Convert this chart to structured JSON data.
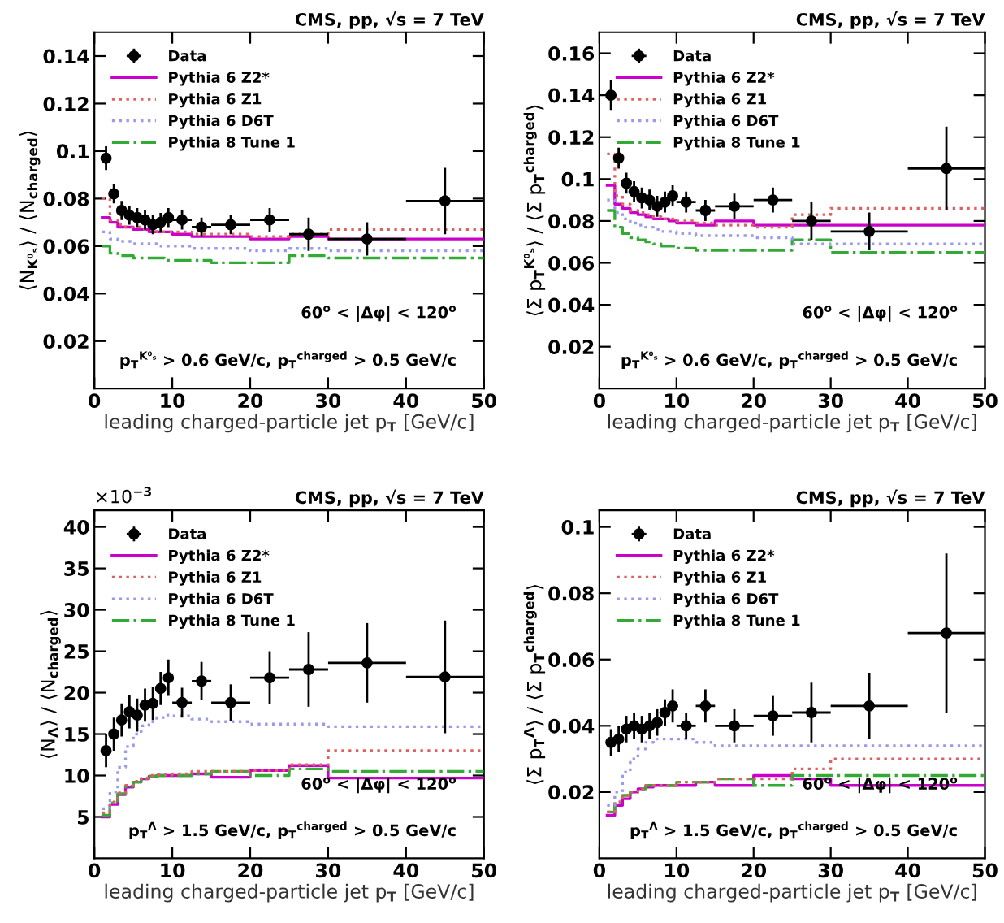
{
  "chart_data": [
    {
      "type": "step",
      "title": "CMS, pp, √s = 7 TeV",
      "xlabel": "leading charged-particle jet p$_{T}$ [GeV/c]",
      "ylabel": "⟨N$_{K⁰ₛ}$⟩ / ⟨N$_{charged}$⟩",
      "annotations": [
        "60$^{o}$ < |Δφ| < 120$^{o}$",
        "p$_{T}$$^{K⁰ₛ}$ > 0.6 GeV/c, p$_{T}$$^{charged}$ > 0.5 GeV/c"
      ],
      "xlim": [
        0,
        50
      ],
      "ylim": [
        0,
        0.15
      ],
      "xticks": [
        0,
        10,
        20,
        30,
        40,
        50
      ],
      "yticks": [
        0.02,
        0.04,
        0.06,
        0.08,
        0.1,
        0.12,
        0.14
      ],
      "legend": "top left",
      "series": [
        {
          "name": "Data",
          "type": "scatter",
          "marker": "circle",
          "color": "#000000",
          "x": [
            1.5,
            2.5,
            3.5,
            4.5,
            5.5,
            6.5,
            7.5,
            8.5,
            9.5,
            11.25,
            13.75,
            17.5,
            22.5,
            27.5,
            35,
            45
          ],
          "values": [
            0.097,
            0.082,
            0.075,
            0.073,
            0.072,
            0.071,
            0.069,
            0.07,
            0.072,
            0.071,
            0.068,
            0.069,
            0.071,
            0.065,
            0.063,
            0.079
          ],
          "errors": [
            0.005,
            0.004,
            0.004,
            0.004,
            0.004,
            0.004,
            0.004,
            0.004,
            0.004,
            0.004,
            0.004,
            0.004,
            0.005,
            0.007,
            0.007,
            0.014
          ],
          "xerrors": [
            0.5,
            0.5,
            0.5,
            0.5,
            0.5,
            0.5,
            0.5,
            0.5,
            0.5,
            1.25,
            1.25,
            2.5,
            2.5,
            2.5,
            5,
            5
          ]
        },
        {
          "name": "Pythia 6 Z2*",
          "type": "step",
          "line_style": "solid",
          "color": "#cc00cc",
          "x": [
            1,
            2,
            3,
            4,
            5,
            6,
            7,
            8,
            9,
            10,
            12.5,
            15,
            20,
            25,
            30,
            40,
            50
          ],
          "values": [
            0.072,
            0.07,
            0.068,
            0.068,
            0.067,
            0.067,
            0.066,
            0.066,
            0.066,
            0.065,
            0.064,
            0.064,
            0.063,
            0.064,
            0.063,
            0.063,
            0.063
          ]
        },
        {
          "name": "Pythia 6 Z1",
          "type": "step",
          "line_style": "dotted",
          "color": "#e06060",
          "x": [
            1,
            2,
            3,
            4,
            5,
            6,
            7,
            8,
            9,
            10,
            12.5,
            15,
            20,
            25,
            30,
            40,
            50
          ],
          "values": [
            0.08,
            0.071,
            0.069,
            0.068,
            0.068,
            0.067,
            0.067,
            0.066,
            0.066,
            0.066,
            0.065,
            0.065,
            0.064,
            0.065,
            0.067,
            0.067,
            0.067
          ]
        },
        {
          "name": "Pythia 6 D6T",
          "type": "step",
          "line_style": "dotted",
          "color": "#9999ee",
          "x": [
            1,
            2,
            3,
            4,
            5,
            6,
            7,
            8,
            9,
            10,
            12.5,
            15,
            20,
            25,
            30,
            40,
            50
          ],
          "values": [
            0.066,
            0.063,
            0.062,
            0.062,
            0.061,
            0.061,
            0.061,
            0.06,
            0.06,
            0.06,
            0.059,
            0.059,
            0.058,
            0.059,
            0.058,
            0.058,
            0.058
          ]
        },
        {
          "name": "Pythia 8 Tune 1",
          "type": "step",
          "line_style": "dashdot",
          "color": "#33aa33",
          "x": [
            1,
            2,
            3,
            4,
            5,
            6,
            7,
            8,
            9,
            10,
            12.5,
            15,
            20,
            25,
            30,
            40,
            50
          ],
          "values": [
            0.06,
            0.057,
            0.056,
            0.056,
            0.055,
            0.055,
            0.055,
            0.055,
            0.054,
            0.054,
            0.054,
            0.053,
            0.053,
            0.056,
            0.055,
            0.055,
            0.055
          ]
        }
      ]
    },
    {
      "type": "step",
      "title": "CMS, pp, √s = 7 TeV",
      "xlabel": "leading charged-particle jet p$_{T}$ [GeV/c]",
      "ylabel": "⟨Σ p$_{T}$$^{K⁰ₛ}$⟩ / ⟨Σ p$_{T}$$^{charged}$⟩",
      "annotations": [
        "60$^{o}$ < |Δφ| < 120$^{o}$",
        "p$_{T}$$^{K⁰ₛ}$ > 0.6 GeV/c, p$_{T}$$^{charged}$ > 0.5 GeV/c"
      ],
      "xlim": [
        0,
        50
      ],
      "ylim": [
        0,
        0.17
      ],
      "xticks": [
        0,
        10,
        20,
        30,
        40,
        50
      ],
      "yticks": [
        0.02,
        0.04,
        0.06,
        0.08,
        0.1,
        0.12,
        0.14,
        0.16
      ],
      "legend": "top left",
      "series": [
        {
          "name": "Data",
          "type": "scatter",
          "marker": "circle",
          "color": "#000000",
          "x": [
            1.5,
            2.5,
            3.5,
            4.5,
            5.5,
            6.5,
            7.5,
            8.5,
            9.5,
            11.25,
            13.75,
            17.5,
            22.5,
            27.5,
            35,
            45
          ],
          "values": [
            0.14,
            0.11,
            0.098,
            0.094,
            0.091,
            0.09,
            0.087,
            0.089,
            0.092,
            0.089,
            0.085,
            0.087,
            0.09,
            0.08,
            0.075,
            0.105
          ],
          "errors": [
            0.007,
            0.005,
            0.005,
            0.005,
            0.005,
            0.005,
            0.005,
            0.005,
            0.005,
            0.005,
            0.005,
            0.006,
            0.006,
            0.009,
            0.009,
            0.02
          ],
          "xerrors": [
            0.5,
            0.5,
            0.5,
            0.5,
            0.5,
            0.5,
            0.5,
            0.5,
            0.5,
            1.25,
            1.25,
            2.5,
            2.5,
            2.5,
            5,
            5
          ]
        },
        {
          "name": "Pythia 6 Z2*",
          "type": "step",
          "line_style": "solid",
          "color": "#cc00cc",
          "x": [
            1,
            2,
            3,
            4,
            5,
            6,
            7,
            8,
            9,
            10,
            12.5,
            15,
            20,
            25,
            30,
            40,
            50
          ],
          "values": [
            0.097,
            0.088,
            0.086,
            0.084,
            0.083,
            0.082,
            0.081,
            0.081,
            0.08,
            0.079,
            0.078,
            0.08,
            0.078,
            0.078,
            0.078,
            0.078,
            0.078
          ]
        },
        {
          "name": "Pythia 6 Z1",
          "type": "step",
          "line_style": "dotted",
          "color": "#e06060",
          "x": [
            1,
            2,
            3,
            4,
            5,
            6,
            7,
            8,
            9,
            10,
            12.5,
            15,
            20,
            25,
            30,
            40,
            50
          ],
          "values": [
            0.112,
            0.092,
            0.088,
            0.085,
            0.084,
            0.083,
            0.082,
            0.081,
            0.081,
            0.08,
            0.079,
            0.078,
            0.077,
            0.083,
            0.086,
            0.086,
            0.086
          ]
        },
        {
          "name": "Pythia 6 D6T",
          "type": "step",
          "line_style": "dotted",
          "color": "#9999ee",
          "x": [
            1,
            2,
            3,
            4,
            5,
            6,
            7,
            8,
            9,
            10,
            12.5,
            15,
            20,
            25,
            30,
            40,
            50
          ],
          "values": [
            0.09,
            0.084,
            0.081,
            0.079,
            0.078,
            0.077,
            0.076,
            0.075,
            0.075,
            0.074,
            0.073,
            0.073,
            0.072,
            0.069,
            0.069,
            0.069,
            0.069
          ]
        },
        {
          "name": "Pythia 8 Tune 1",
          "type": "step",
          "line_style": "dashdot",
          "color": "#33aa33",
          "x": [
            1,
            2,
            3,
            4,
            5,
            6,
            7,
            8,
            9,
            10,
            12.5,
            15,
            20,
            25,
            30,
            40,
            50
          ],
          "values": [
            0.085,
            0.077,
            0.074,
            0.072,
            0.071,
            0.07,
            0.069,
            0.068,
            0.068,
            0.067,
            0.066,
            0.066,
            0.066,
            0.071,
            0.065,
            0.065,
            0.065
          ]
        }
      ]
    },
    {
      "type": "step",
      "title": "CMS, pp, √s = 7 TeV",
      "xlabel": "leading charged-particle jet p$_{T}$ [GeV/c]",
      "ylabel": "⟨N$_{Λ}$⟩ / ⟨N$_{charged}$⟩",
      "annotations": [
        "×10$^{−3}$",
        "60$^{o}$ < |Δφ| < 120$^{o}$",
        "p$_{T}$$^{Λ}$ > 1.5 GeV/c, p$_{T}$$^{charged}$ > 0.5 GeV/c"
      ],
      "xlim": [
        0,
        50
      ],
      "ylim": [
        0,
        42
      ],
      "xticks": [
        0,
        10,
        20,
        30,
        40,
        50
      ],
      "yticks": [
        5,
        10,
        15,
        20,
        25,
        30,
        35,
        40
      ],
      "legend": "top left",
      "series": [
        {
          "name": "Data",
          "type": "scatter",
          "marker": "circle",
          "color": "#000000",
          "x": [
            1.5,
            2.5,
            3.5,
            4.5,
            5.5,
            6.5,
            7.5,
            8.5,
            9.5,
            11.25,
            13.75,
            17.5,
            22.5,
            27.5,
            35,
            45
          ],
          "values": [
            13,
            15,
            16.7,
            17.7,
            17.3,
            18.5,
            18.7,
            20.5,
            21.8,
            18.8,
            21.4,
            18.8,
            21.8,
            22.8,
            23.6,
            21.9
          ],
          "errors": [
            2,
            2,
            2,
            2,
            2,
            2,
            2,
            2,
            2.2,
            1.8,
            2.3,
            2.2,
            3.2,
            4.5,
            4.8,
            6.8
          ],
          "xerrors": [
            0.5,
            0.5,
            0.5,
            0.5,
            0.5,
            0.5,
            0.5,
            0.5,
            0.5,
            1.25,
            1.25,
            2.5,
            2.5,
            2.5,
            5,
            5
          ]
        },
        {
          "name": "Pythia 6 Z2*",
          "type": "step",
          "line_style": "solid",
          "color": "#cc00cc",
          "x": [
            1,
            2,
            3,
            4,
            5,
            6,
            7,
            8,
            9,
            10,
            12.5,
            15,
            20,
            25,
            30,
            40,
            50
          ],
          "values": [
            5,
            6.5,
            7.7,
            8.6,
            9.2,
            9.6,
            9.9,
            10,
            10,
            10,
            10.2,
            9.8,
            10.6,
            11.2,
            9.7,
            9.7,
            9.7
          ]
        },
        {
          "name": "Pythia 6 Z1",
          "type": "step",
          "line_style": "dotted",
          "color": "#e06060",
          "x": [
            1,
            2,
            3,
            4,
            5,
            6,
            7,
            8,
            9,
            10,
            12.5,
            15,
            20,
            25,
            30,
            40,
            50
          ],
          "values": [
            5.5,
            6.8,
            7.9,
            8.8,
            9.3,
            9.7,
            10,
            10.1,
            10.1,
            10.2,
            10.5,
            10.5,
            10.6,
            11.3,
            13,
            13,
            13
          ]
        },
        {
          "name": "Pythia 6 D6T",
          "type": "step",
          "line_style": "dotted",
          "color": "#9999ee",
          "x": [
            1,
            2,
            3,
            4,
            5,
            6,
            7,
            8,
            9,
            10,
            12.5,
            15,
            20,
            25,
            30,
            40,
            50
          ],
          "values": [
            6,
            8,
            11,
            13.5,
            15,
            16,
            16.5,
            17,
            17.3,
            17.2,
            16.8,
            16.5,
            16.2,
            16.2,
            15.9,
            15.9,
            15.9
          ]
        },
        {
          "name": "Pythia 8 Tune 1",
          "type": "step",
          "line_style": "dashdot",
          "color": "#33aa33",
          "x": [
            1,
            2,
            3,
            4,
            5,
            6,
            7,
            8,
            9,
            10,
            12.5,
            15,
            20,
            25,
            30,
            40,
            50
          ],
          "values": [
            5.2,
            6.7,
            7.8,
            8.7,
            9.2,
            9.6,
            9.9,
            10,
            10,
            10,
            10.2,
            10.5,
            10,
            10.8,
            10.5,
            10.5,
            10.5
          ]
        }
      ]
    },
    {
      "type": "step",
      "title": "CMS, pp, √s = 7 TeV",
      "xlabel": "leading charged-particle jet p$_{T}$ [GeV/c]",
      "ylabel": "⟨Σ p$_{T}$$^{Λ}$⟩ / ⟨Σ p$_{T}$$^{charged}$⟩",
      "annotations": [
        "60$^{o}$ < |Δφ| < 120$^{o}$",
        "p$_{T}$$^{Λ}$ > 1.5 GeV/c, p$_{T}$$^{charged}$ > 0.5 GeV/c"
      ],
      "xlim": [
        0,
        50
      ],
      "ylim": [
        0,
        0.105
      ],
      "xticks": [
        0,
        10,
        20,
        30,
        40,
        50
      ],
      "yticks": [
        0.02,
        0.04,
        0.06,
        0.08,
        0.1
      ],
      "legend": "top left",
      "series": [
        {
          "name": "Data",
          "type": "scatter",
          "marker": "circle",
          "color": "#000000",
          "x": [
            1.5,
            2.5,
            3.5,
            4.5,
            5.5,
            6.5,
            7.5,
            8.5,
            9.5,
            11.25,
            13.75,
            17.5,
            22.5,
            27.5,
            35,
            45
          ],
          "values": [
            0.035,
            0.036,
            0.039,
            0.04,
            0.039,
            0.04,
            0.041,
            0.044,
            0.046,
            0.04,
            0.046,
            0.04,
            0.043,
            0.044,
            0.046,
            0.068
          ],
          "errors": [
            0.004,
            0.004,
            0.004,
            0.004,
            0.004,
            0.004,
            0.004,
            0.004,
            0.005,
            0.004,
            0.005,
            0.005,
            0.006,
            0.009,
            0.01,
            0.024
          ],
          "xerrors": [
            0.5,
            0.5,
            0.5,
            0.5,
            0.5,
            0.5,
            0.5,
            0.5,
            0.5,
            1.25,
            1.25,
            2.5,
            2.5,
            2.5,
            5,
            5
          ]
        },
        {
          "name": "Pythia 6 Z2*",
          "type": "step",
          "line_style": "solid",
          "color": "#cc00cc",
          "x": [
            1,
            2,
            3,
            4,
            5,
            6,
            7,
            8,
            9,
            10,
            12.5,
            15,
            20,
            25,
            30,
            40,
            50
          ],
          "values": [
            0.013,
            0.016,
            0.018,
            0.02,
            0.021,
            0.0215,
            0.022,
            0.022,
            0.022,
            0.022,
            0.023,
            0.022,
            0.025,
            0.024,
            0.022,
            0.022,
            0.022
          ]
        },
        {
          "name": "Pythia 6 Z1",
          "type": "step",
          "line_style": "dotted",
          "color": "#e06060",
          "x": [
            1,
            2,
            3,
            4,
            5,
            6,
            7,
            8,
            9,
            10,
            12.5,
            15,
            20,
            25,
            30,
            40,
            50
          ],
          "values": [
            0.014,
            0.017,
            0.019,
            0.02,
            0.021,
            0.022,
            0.022,
            0.022,
            0.022,
            0.023,
            0.023,
            0.024,
            0.024,
            0.027,
            0.03,
            0.03,
            0.03
          ]
        },
        {
          "name": "Pythia 6 D6T",
          "type": "step",
          "line_style": "dotted",
          "color": "#9999ee",
          "x": [
            1,
            2,
            3,
            4,
            5,
            6,
            7,
            8,
            9,
            10,
            12.5,
            15,
            20,
            25,
            30,
            40,
            50
          ],
          "values": [
            0.016,
            0.02,
            0.026,
            0.03,
            0.033,
            0.035,
            0.036,
            0.036,
            0.036,
            0.036,
            0.035,
            0.034,
            0.034,
            0.034,
            0.034,
            0.034,
            0.034
          ]
        },
        {
          "name": "Pythia 8 Tune 1",
          "type": "step",
          "line_style": "dashdot",
          "color": "#33aa33",
          "x": [
            1,
            2,
            3,
            4,
            5,
            6,
            7,
            8,
            9,
            10,
            12.5,
            15,
            20,
            25,
            30,
            40,
            50
          ],
          "values": [
            0.014,
            0.017,
            0.019,
            0.02,
            0.021,
            0.022,
            0.022,
            0.022,
            0.022,
            0.023,
            0.023,
            0.024,
            0.022,
            0.025,
            0.025,
            0.025,
            0.025
          ]
        }
      ]
    }
  ]
}
